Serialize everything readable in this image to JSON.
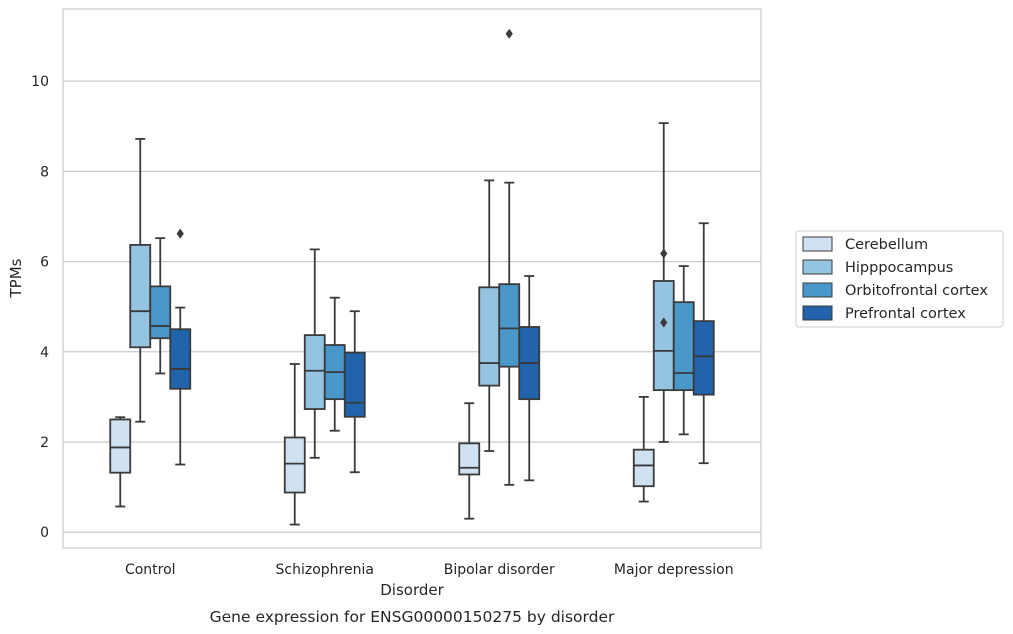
{
  "chart_data": {
    "type": "box",
    "caption": "Gene expression for ENSG00000150275 by disorder",
    "xlabel": "Disorder",
    "ylabel": "TPMs",
    "ylim": [
      -0.35,
      11.6
    ],
    "yticks": [
      0,
      2,
      4,
      6,
      8,
      10
    ],
    "grid": "horizontal",
    "legend_position": "right",
    "categories": [
      "Control",
      "Schizophrenia",
      "Bipolar disorder",
      "Major depression"
    ],
    "series": [
      {
        "name": "Cerebellum",
        "color": "#d0e1f2",
        "boxes": [
          {
            "whislo": 0.57,
            "q1": 1.32,
            "med": 1.88,
            "q3": 2.5,
            "whishi": 2.55,
            "fliers": []
          },
          {
            "whislo": 0.17,
            "q1": 0.88,
            "med": 1.52,
            "q3": 2.1,
            "whishi": 3.73,
            "fliers": []
          },
          {
            "whislo": 0.3,
            "q1": 1.28,
            "med": 1.43,
            "q3": 1.97,
            "whishi": 2.86,
            "fliers": []
          },
          {
            "whislo": 0.68,
            "q1": 1.02,
            "med": 1.48,
            "q3": 1.83,
            "whishi": 3.0,
            "fliers": []
          }
        ]
      },
      {
        "name": "Hipppocampus",
        "color": "#94c4df",
        "boxes": [
          {
            "whislo": 2.45,
            "q1": 4.1,
            "med": 4.9,
            "q3": 6.37,
            "whishi": 8.72,
            "fliers": []
          },
          {
            "whislo": 1.65,
            "q1": 2.73,
            "med": 3.58,
            "q3": 4.37,
            "whishi": 6.27,
            "fliers": []
          },
          {
            "whislo": 1.8,
            "q1": 3.25,
            "med": 3.75,
            "q3": 5.43,
            "whishi": 7.8,
            "fliers": []
          },
          {
            "whislo": 2.0,
            "q1": 3.15,
            "med": 4.02,
            "q3": 5.57,
            "whishi": 9.07,
            "fliers": [
              4.65,
              6.18
            ]
          }
        ]
      },
      {
        "name": "Orbitofrontal cortex",
        "color": "#4a98c9",
        "boxes": [
          {
            "whislo": 3.52,
            "q1": 4.3,
            "med": 4.57,
            "q3": 5.45,
            "whishi": 6.52,
            "fliers": []
          },
          {
            "whislo": 2.25,
            "q1": 2.95,
            "med": 3.55,
            "q3": 4.15,
            "whishi": 5.2,
            "fliers": []
          },
          {
            "whislo": 1.05,
            "q1": 3.67,
            "med": 4.52,
            "q3": 5.5,
            "whishi": 7.75,
            "fliers": [
              11.05
            ]
          },
          {
            "whislo": 2.17,
            "q1": 3.15,
            "med": 3.53,
            "q3": 5.1,
            "whishi": 5.9,
            "fliers": []
          }
        ]
      },
      {
        "name": "Prefrontal cortex",
        "color": "#2164ab",
        "boxes": [
          {
            "whislo": 1.5,
            "q1": 3.18,
            "med": 3.62,
            "q3": 4.5,
            "whishi": 4.98,
            "fliers": [
              6.62
            ]
          },
          {
            "whislo": 1.33,
            "q1": 2.56,
            "med": 2.87,
            "q3": 3.98,
            "whishi": 4.9,
            "fliers": []
          },
          {
            "whislo": 1.15,
            "q1": 2.95,
            "med": 3.75,
            "q3": 4.55,
            "whishi": 5.68,
            "fliers": []
          },
          {
            "whislo": 1.53,
            "q1": 3.05,
            "med": 3.9,
            "q3": 4.68,
            "whishi": 6.85,
            "fliers": []
          }
        ]
      }
    ]
  }
}
